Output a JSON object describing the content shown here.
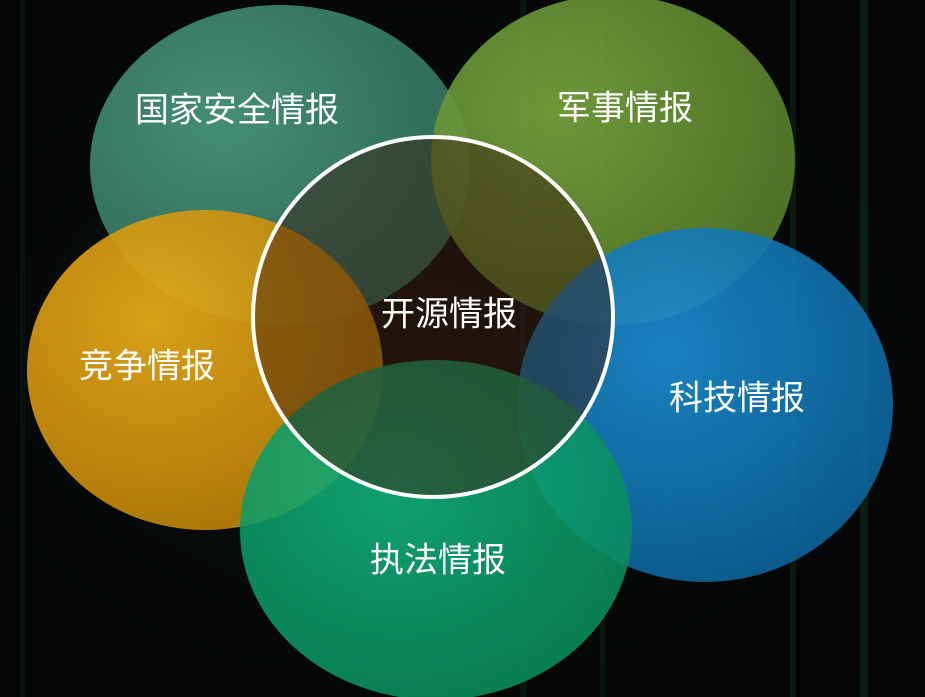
{
  "diagram": {
    "center": {
      "label": "开源情报"
    },
    "nodes": [
      {
        "id": "national-security",
        "label": "国家安全情报",
        "color": "#3e8a72"
      },
      {
        "id": "military",
        "label": "军事情报",
        "color": "#6f9a38"
      },
      {
        "id": "competitive",
        "label": "竞争情报",
        "color": "#d99b0c"
      },
      {
        "id": "science-technology",
        "label": "科技情报",
        "color": "#1479b8"
      },
      {
        "id": "law-enforcement",
        "label": "执法情报",
        "color": "#0ea36e"
      }
    ]
  }
}
